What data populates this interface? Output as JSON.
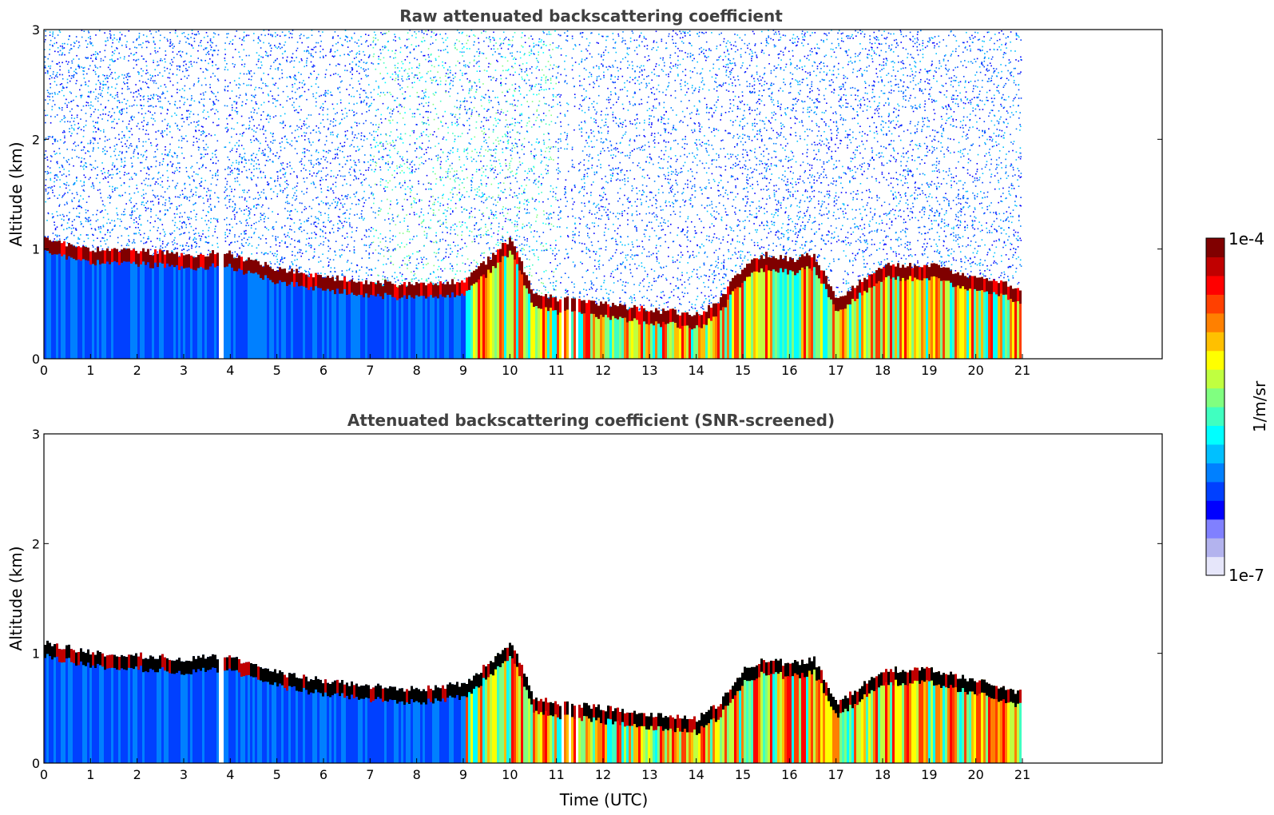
{
  "chart_data": [
    {
      "type": "heatmap",
      "title": "Raw attenuated backscattering coefficient",
      "xlabel": "",
      "ylabel": "Altitude (km)",
      "xlim": [
        0,
        24
      ],
      "ylim": [
        0,
        3
      ],
      "xticks": [
        "0",
        "1",
        "2",
        "3",
        "4",
        "5",
        "6",
        "7",
        "8",
        "9",
        "10",
        "11",
        "12",
        "13",
        "14",
        "15",
        "16",
        "17",
        "18",
        "19",
        "20",
        "21"
      ],
      "yticks": [
        "0",
        "1",
        "2",
        "3"
      ],
      "data_end_hour": 20.95,
      "gaps_hours": [
        3.72,
        3.82,
        11.0,
        11.45
      ],
      "layer_top_km": {
        "hours": [
          0,
          1,
          2,
          3,
          3.9,
          4.5,
          5,
          6,
          7,
          8,
          9,
          9.5,
          10,
          10.5,
          11,
          12,
          13,
          14,
          14.5,
          15,
          15.5,
          16,
          16.5,
          17,
          17.5,
          18,
          19,
          20,
          20.9
        ],
        "values": [
          1.1,
          1.0,
          0.98,
          0.95,
          0.97,
          0.88,
          0.82,
          0.75,
          0.7,
          0.67,
          0.72,
          0.9,
          1.1,
          0.6,
          0.55,
          0.5,
          0.45,
          0.4,
          0.55,
          0.85,
          0.95,
          0.9,
          0.95,
          0.55,
          0.7,
          0.85,
          0.85,
          0.75,
          0.65
        ]
      },
      "clear_sky_noise": "high above layer",
      "colormap": "jet"
    },
    {
      "type": "heatmap",
      "title": "Attenuated backscattering coefficient (SNR-screened)",
      "xlabel": "Time (UTC)",
      "ylabel": "Altitude (km)",
      "xlim": [
        0,
        24
      ],
      "ylim": [
        0,
        3
      ],
      "xticks": [
        "0",
        "1",
        "2",
        "3",
        "4",
        "5",
        "6",
        "7",
        "8",
        "9",
        "10",
        "11",
        "12",
        "13",
        "14",
        "15",
        "16",
        "17",
        "18",
        "19",
        "20",
        "21"
      ],
      "yticks": [
        "0",
        "1",
        "2",
        "3"
      ],
      "data_end_hour": 20.95,
      "gaps_hours": [
        3.72,
        3.82,
        11.0,
        11.45
      ],
      "clear_sky_noise": "screened",
      "colormap": "jet"
    }
  ],
  "colorbar": {
    "label": "1/m/sr",
    "max_label": "1e-4",
    "min_label": "1e-7",
    "colors": [
      "#e6e6fa",
      "#b3b3ee",
      "#8080ff",
      "#0000ff",
      "#0040ff",
      "#0080ff",
      "#00c0ff",
      "#00ffff",
      "#40ffc0",
      "#80ff80",
      "#c0ff40",
      "#ffff00",
      "#ffc000",
      "#ff8000",
      "#ff4000",
      "#ff0000",
      "#c00000",
      "#800000"
    ]
  }
}
